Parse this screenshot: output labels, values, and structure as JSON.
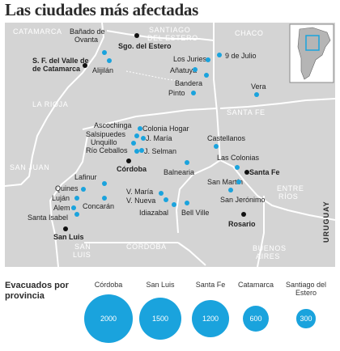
{
  "title": "Las ciudades más afectadas",
  "provinces": {
    "catamarca": "CATAMARCA",
    "santiago": "SANTIAGO",
    "del_estero": "DEL ESTERO",
    "chaco": "CHACO",
    "la_rioja": "LA RIOJA",
    "santa_fe": "SANTA FE",
    "san_juan": "SAN JUAN",
    "entre": "ENTRE",
    "rios": "RÍOS",
    "cordoba": "CÓRDOBA",
    "san": "SAN",
    "luis": "LUIS",
    "buenos": "BUENOS",
    "aires": "AIRES",
    "uruguay": "URUGUAY"
  },
  "cities": {
    "banado_de": "Bañado de",
    "ovanta": "Ovanta",
    "sgo_del_estero": "Sgo. del Estero",
    "sf_valle_1": "S. F. del Valle de",
    "sf_valle_2": "de Catamarca",
    "alijilan": "Alijilán",
    "nueve_julio": "9 de Julio",
    "los_juries": "Los Juries",
    "anatuya": "Añatuya",
    "bandera": "Bandera",
    "pinto": "Pinto",
    "vera": "Vera",
    "ascochinga": "Ascochinga",
    "salsipuedes": "Salsipuedes",
    "unquillo": "Unquillo",
    "rio_ceballos": "Río Ceballos",
    "colonia_hogar": "Colonia Hogar",
    "j_maria": "J. María",
    "j_selman": "J. Selman",
    "castellanos": "Castellanos",
    "cordoba_city": "Córdoba",
    "balnearia": "Balnearia",
    "las_colonias": "Las Colonias",
    "santa_fe_city": "Santa Fe",
    "san_martin": "San Martín",
    "san_jeronimo": "San Jerónimo",
    "lafinur": "Lafinur",
    "quines": "Quines",
    "lujan": "Luján",
    "alem": "Alem",
    "concaran": "Concarán",
    "santa_isabel": "Santa Isabel",
    "san_luis_city": "San Luis",
    "v_maria": "V. María",
    "v_nueva": "V. Nueva",
    "idiazabal": "Idiazabal",
    "bell_ville": "Bell Ville",
    "rosario": "Rosario"
  },
  "legend": {
    "title": "Evacuados por provincia",
    "color": "#1aa3dd",
    "items": [
      {
        "province": "Córdoba",
        "value": "2000"
      },
      {
        "province": "San Luis",
        "value": "1500"
      },
      {
        "province": "Santa Fe",
        "value": "1200"
      },
      {
        "province": "Catamarca",
        "value": "600"
      },
      {
        "province": "Santiago del Estero",
        "value": "300"
      }
    ]
  },
  "colors": {
    "land": "#d4d4d4",
    "border": "#ffffff",
    "city_dot": "#1aa3dd",
    "capital_dot": "#111111"
  }
}
